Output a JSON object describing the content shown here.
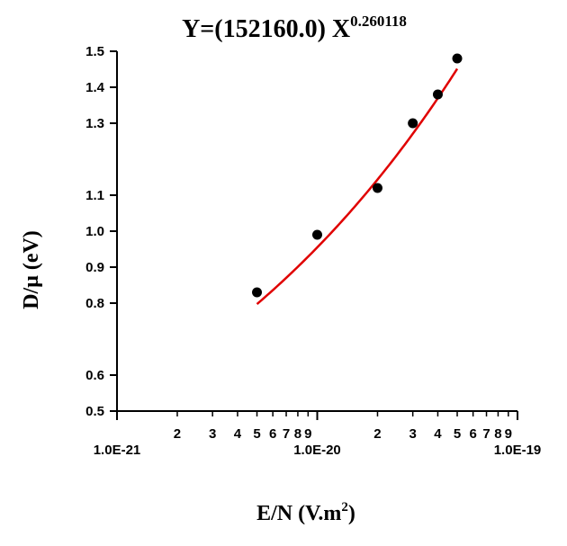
{
  "chart_data": {
    "type": "scatter",
    "title_prefix": "Y=(152160.0) X",
    "title_exponent": "0.260118",
    "xlabel_prefix": "E/N (V.m",
    "xlabel_sup": "2",
    "xlabel_suffix": ")",
    "ylabel": "D/μ (eV)",
    "x_scale": "log",
    "xlim": [
      1e-21,
      1e-19
    ],
    "ylim": [
      0.5,
      1.5
    ],
    "x_major_tick_labels": [
      "1.0E-21",
      "1.0E-20",
      "1.0E-19"
    ],
    "x_minor_tick_labels": [
      "2",
      "3",
      "4",
      "5",
      "6",
      "7",
      "8",
      "9"
    ],
    "y_tick_labels": [
      "0.5",
      "0.6",
      "0.8",
      "0.9",
      "1.0",
      "1.1",
      "1.3",
      "1.4",
      "1.5"
    ],
    "series": [
      {
        "type": "scatter",
        "x": [
          5e-21,
          1e-20,
          2e-20,
          3e-20,
          4e-20,
          5e-20
        ],
        "y": [
          0.83,
          0.99,
          1.12,
          1.3,
          1.38,
          1.48
        ],
        "color": "#000000"
      },
      {
        "type": "line",
        "fit": "power",
        "coefficient": 152160.0,
        "exponent": 0.260118,
        "x_range": [
          5e-21,
          5e-20
        ],
        "color": "#e00000"
      }
    ],
    "grid": false,
    "legend": "none"
  }
}
